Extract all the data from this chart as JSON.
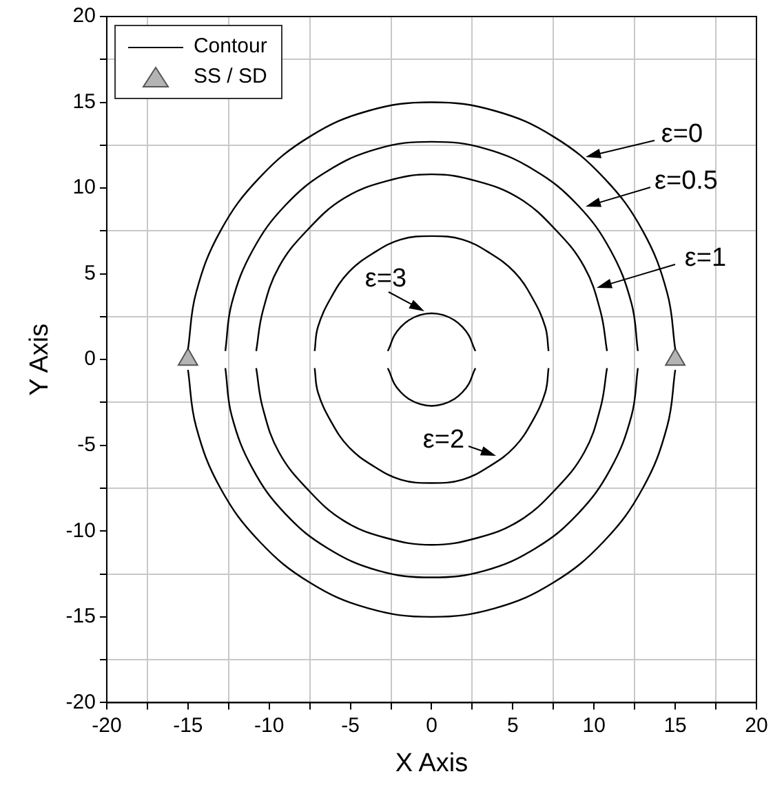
{
  "chart_data": {
    "type": "line",
    "xlabel": "X Axis",
    "ylabel": "Y Axis",
    "xlim": [
      -20,
      20
    ],
    "ylim": [
      -20,
      20
    ],
    "xticks": [
      -20,
      {
        "value": -17.5,
        "label": null
      },
      -15,
      {
        "value": -12.5,
        "label": null
      },
      -10,
      {
        "value": -7.5,
        "label": null
      },
      -5,
      {
        "value": -2.5,
        "label": null
      },
      0,
      {
        "value": 2.5,
        "label": null
      },
      5,
      {
        "value": 7.5,
        "label": null
      },
      10,
      {
        "value": 12.5,
        "label": null
      },
      15,
      {
        "value": 17.5,
        "label": null
      },
      20
    ],
    "yticks": [
      -20,
      {
        "value": -17.5,
        "label": null
      },
      -15,
      {
        "value": -12.5,
        "label": null
      },
      -10,
      {
        "value": -7.5,
        "label": null
      },
      -5,
      {
        "value": -2.5,
        "label": null
      },
      0,
      {
        "value": 2.5,
        "label": null
      },
      5,
      {
        "value": 7.5,
        "label": null
      },
      10,
      {
        "value": 12.5,
        "label": null
      },
      15,
      {
        "value": 17.5,
        "label": null
      },
      20
    ],
    "grid": true,
    "legend": "top left",
    "series": [
      {
        "name": "Contour",
        "color": "#000000",
        "marker": "none",
        "line_style": "solid",
        "x": [
          15,
          14.5,
          13,
          10.6,
          7.5,
          3.9,
          0,
          -3.9,
          -7.5,
          -10.6,
          -13,
          -14.5,
          -15
        ],
        "values": [
          0.6,
          3.9,
          7.5,
          10.6,
          13,
          14.5,
          15,
          14.5,
          13,
          10.6,
          7.5,
          3.9,
          0.6
        ]
      },
      {
        "color": "#000000",
        "x": [
          -15,
          -14.5,
          -13,
          -10.6,
          -7.5,
          -3.9,
          0,
          3.9,
          7.5,
          10.6,
          13,
          14.5,
          15
        ],
        "values": [
          -0.6,
          -3.9,
          -7.5,
          -10.6,
          -13,
          -14.5,
          -15,
          -14.5,
          -13,
          -10.6,
          -7.5,
          -3.9,
          -0.6
        ]
      },
      {
        "color": "#000000",
        "x": [
          12.7,
          12.3,
          11,
          9,
          6.4,
          3.3,
          0,
          -3.3,
          -6.4,
          -9,
          -11,
          -12.3,
          -12.7
        ],
        "values": [
          0.5,
          3.3,
          6.4,
          9,
          11,
          12.3,
          12.7,
          12.3,
          11,
          9,
          6.4,
          3.3,
          0.5
        ]
      },
      {
        "color": "#000000",
        "x": [
          -12.7,
          -12.3,
          -11,
          -9,
          -6.4,
          -3.3,
          0,
          3.3,
          6.4,
          9,
          11,
          12.3,
          12.7
        ],
        "values": [
          -0.5,
          -3.3,
          -6.4,
          -9,
          -11,
          -12.3,
          -12.7,
          -12.3,
          -11,
          -9,
          -6.4,
          -3.3,
          -0.5
        ]
      },
      {
        "color": "#000000",
        "x": [
          10.8,
          10.4,
          9.4,
          7.6,
          5.4,
          2.8,
          0,
          -2.8,
          -5.4,
          -7.6,
          -9.4,
          -10.4,
          -10.8
        ],
        "values": [
          0.5,
          2.8,
          5.4,
          7.6,
          9.4,
          10.4,
          10.8,
          10.4,
          9.4,
          7.6,
          5.4,
          2.8,
          0.5
        ]
      },
      {
        "color": "#000000",
        "x": [
          -10.8,
          -10.4,
          -9.4,
          -7.6,
          -5.4,
          -2.8,
          0,
          2.8,
          5.4,
          7.6,
          9.4,
          10.4,
          10.8
        ],
        "values": [
          -0.5,
          -2.8,
          -5.4,
          -7.6,
          -9.4,
          -10.4,
          -10.8,
          -10.4,
          -9.4,
          -7.6,
          -5.4,
          -2.8,
          -0.5
        ]
      },
      {
        "color": "#000000",
        "x": [
          7.2,
          7,
          6.2,
          5.1,
          3.6,
          1.9,
          0,
          -1.9,
          -3.6,
          -5.1,
          -6.2,
          -7,
          -7.2
        ],
        "values": [
          0.5,
          1.9,
          3.6,
          5.1,
          6.2,
          7,
          7.2,
          7,
          6.2,
          5.1,
          3.6,
          1.9,
          0.5
        ]
      },
      {
        "color": "#000000",
        "x": [
          -7.2,
          -7,
          -6.2,
          -5.1,
          -3.6,
          -1.9,
          0,
          1.9,
          3.6,
          5.1,
          6.2,
          7,
          7.2
        ],
        "values": [
          -0.5,
          -1.9,
          -3.6,
          -5.1,
          -6.2,
          -7,
          -7.2,
          -7,
          -6.2,
          -5.1,
          -3.6,
          -1.9,
          -0.5
        ]
      },
      {
        "color": "#000000",
        "x": [
          2.7,
          2.6,
          2.3,
          1.9,
          1.4,
          0.7,
          0,
          -0.7,
          -1.4,
          -1.9,
          -2.3,
          -2.6,
          -2.7
        ],
        "values": [
          0.5,
          0.7,
          1.4,
          1.9,
          2.3,
          2.6,
          2.7,
          2.6,
          2.3,
          1.9,
          1.4,
          0.7,
          0.5
        ]
      },
      {
        "color": "#000000",
        "x": [
          -2.7,
          -2.6,
          -2.3,
          -1.9,
          -1.4,
          -0.7,
          0,
          0.7,
          1.4,
          1.9,
          2.3,
          2.6,
          2.7
        ],
        "values": [
          -0.5,
          -0.7,
          -1.4,
          -1.9,
          -2.3,
          -2.6,
          -2.7,
          -2.6,
          -2.3,
          -1.9,
          -1.4,
          -0.7,
          -0.5
        ]
      },
      {
        "name": "SS / SD",
        "type": "scatter",
        "color": "#b4b4b4",
        "marker": "triangle",
        "x": [
          -15,
          15
        ],
        "values": [
          0,
          0
        ]
      }
    ],
    "annotations": [
      "ε=0",
      "ε=0.5",
      "ε=1",
      "ε=3",
      "ε=2"
    ]
  }
}
